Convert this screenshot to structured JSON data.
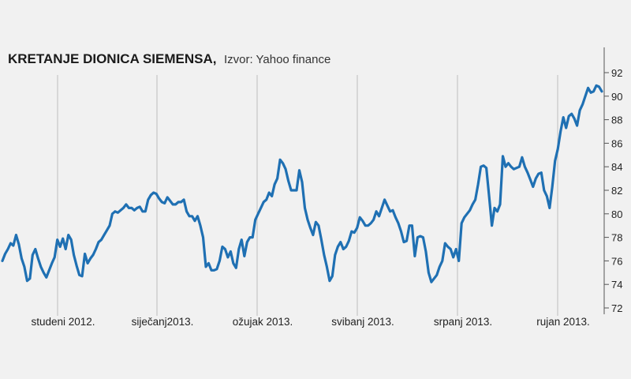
{
  "chart_data": {
    "type": "line",
    "title": "KRETANJE DIONICA SIEMENSA,",
    "source": "Izvor: Yahoo finance",
    "ylim": [
      72,
      93
    ],
    "yticks": [
      72,
      74,
      76,
      78,
      80,
      82,
      84,
      86,
      88,
      90,
      92
    ],
    "xlabels": [
      "studeni 2012.",
      "siječanj2013.",
      "ožujak 2013.",
      "svibanj 2013.",
      "srpanj 2013.",
      "rujan 2013."
    ],
    "series": [
      {
        "name": "Siemens",
        "color": "#1f70b3",
        "values": [
          76.0,
          76.6,
          77.0,
          77.5,
          77.3,
          78.2,
          77.4,
          76.2,
          75.5,
          74.3,
          74.5,
          76.5,
          77.0,
          76.2,
          75.5,
          75.0,
          74.6,
          75.2,
          75.8,
          76.3,
          77.8,
          77.2,
          77.9,
          77.0,
          78.2,
          77.8,
          76.5,
          75.6,
          74.8,
          74.7,
          76.6,
          75.8,
          76.2,
          76.5,
          77.0,
          77.6,
          77.8,
          78.2,
          78.6,
          79.0,
          80.0,
          80.2,
          80.1,
          80.3,
          80.5,
          80.8,
          80.5,
          80.5,
          80.3,
          80.5,
          80.6,
          80.2,
          80.2,
          81.2,
          81.6,
          81.8,
          81.7,
          81.3,
          81.0,
          80.9,
          81.4,
          81.1,
          80.8,
          80.8,
          81.0,
          81.0,
          81.2,
          80.2,
          79.8,
          79.8,
          79.4,
          79.8,
          79.0,
          78.0,
          75.5,
          75.8,
          75.2,
          75.2,
          75.3,
          76.0,
          77.2,
          77.0,
          76.3,
          76.8,
          75.8,
          75.4,
          77.0,
          77.8,
          76.4,
          77.6,
          78.0,
          78.0,
          79.5,
          80.0,
          80.5,
          81.0,
          81.2,
          81.8,
          81.5,
          82.5,
          83.0,
          84.6,
          84.3,
          83.8,
          82.8,
          82.0,
          82.0,
          82.0,
          83.7,
          82.7,
          80.5,
          79.5,
          78.8,
          78.2,
          79.3,
          79.0,
          77.8,
          76.5,
          75.5,
          74.3,
          74.7,
          76.5,
          77.2,
          77.6,
          77.0,
          77.2,
          77.7,
          78.5,
          78.4,
          78.8,
          79.7,
          79.4,
          79.0,
          79.0,
          79.2,
          79.5,
          80.2,
          79.8,
          80.5,
          81.2,
          80.7,
          80.2,
          80.3,
          79.7,
          79.2,
          78.5,
          77.6,
          77.7,
          79.0,
          79.0,
          76.4,
          78.0,
          78.1,
          78.0,
          76.8,
          75.0,
          74.2,
          74.5,
          74.8,
          75.5,
          76.0,
          77.5,
          77.2,
          77.0,
          76.3,
          77.0,
          76.0,
          79.2,
          79.7,
          80.0,
          80.3,
          80.8,
          81.2,
          82.5,
          84.0,
          84.1,
          83.9,
          81.5,
          79.0,
          80.5,
          80.2,
          80.8,
          84.9,
          84.0,
          84.3,
          84.0,
          83.8,
          83.9,
          84.0,
          84.8,
          84.0,
          83.5,
          82.9,
          82.3,
          83.0,
          83.4,
          83.5,
          82.0,
          81.5,
          80.5,
          82.3,
          84.5,
          85.5,
          87.0,
          88.2,
          87.3,
          88.3,
          88.5,
          88.1,
          87.5,
          88.8,
          89.3,
          90.0,
          90.7,
          90.3,
          90.4,
          90.9,
          90.8,
          90.4
        ]
      }
    ]
  }
}
